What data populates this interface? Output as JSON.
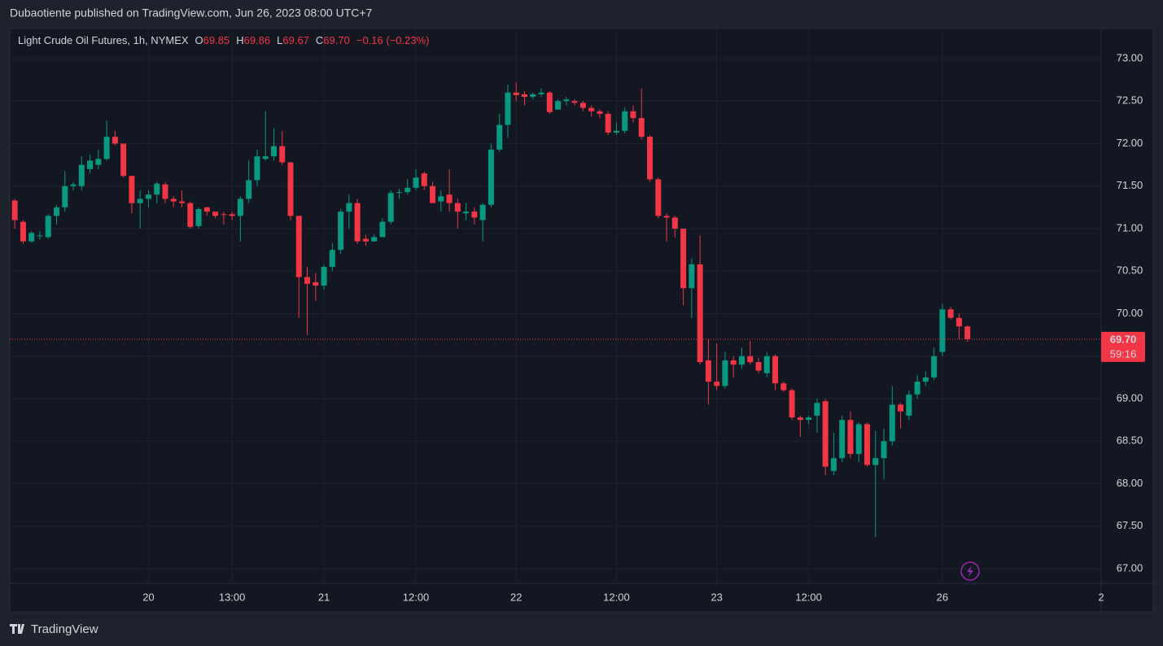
{
  "header": {
    "published": "Dubaotiente published on TradingView.com, Jun 26, 2023 08:00 UTC+7"
  },
  "footer": {
    "brand": "TradingView"
  },
  "chart_data": {
    "type": "candlestick",
    "title": "Light Crude Oil Futures, 1h, NYMEX",
    "ohlc_labels": [
      "O",
      "H",
      "L",
      "C"
    ],
    "ohlc_values": [
      "69.85",
      "69.86",
      "69.67",
      "69.70"
    ],
    "change": "−0.16 (−0.23%)",
    "up_color": "#089981",
    "down_color": "#f23645",
    "grid": true,
    "open": [
      71.33,
      71.08,
      70.85,
      70.92,
      70.9,
      71.15,
      71.25,
      71.5,
      71.5,
      71.7,
      71.75,
      71.82,
      72.08,
      72.0,
      71.62,
      71.3,
      71.35,
      71.4,
      71.52,
      71.35,
      71.32,
      71.3,
      71.03,
      71.25,
      71.2,
      71.17,
      71.17,
      71.15,
      71.35,
      71.57,
      71.82,
      71.85,
      71.97,
      71.78,
      71.15,
      70.43,
      70.37,
      70.33,
      70.55,
      70.75,
      71.2,
      71.3,
      70.88,
      70.85,
      70.9,
      71.08,
      71.42,
      71.43,
      71.48,
      71.65,
      71.5,
      71.32,
      71.4,
      71.3,
      71.18,
      71.2,
      71.1,
      71.28,
      71.93,
      72.22,
      72.6,
      72.58,
      72.55,
      72.58,
      72.6,
      72.4,
      72.5,
      72.5,
      72.48,
      72.42,
      72.38,
      72.35,
      72.13,
      72.15,
      72.38,
      72.3,
      72.08,
      71.58,
      71.15,
      71.13,
      71.0,
      70.3,
      70.58,
      69.45,
      69.2,
      69.15,
      69.45,
      69.4,
      69.5,
      69.43,
      69.3,
      69.5,
      69.18,
      69.1,
      68.78,
      68.75,
      68.8,
      68.97,
      68.15,
      68.3,
      68.75,
      68.35,
      68.7,
      68.22,
      68.3,
      68.5,
      68.93,
      68.8,
      69.05,
      69.2,
      69.25,
      69.55,
      70.05,
      69.95,
      69.85
    ],
    "high": [
      71.35,
      71.1,
      70.97,
      70.97,
      71.17,
      71.28,
      71.68,
      71.55,
      71.85,
      71.87,
      71.93,
      72.27,
      72.15,
      72.0,
      71.62,
      71.45,
      71.45,
      71.55,
      71.55,
      71.38,
      71.45,
      71.32,
      71.25,
      71.26,
      71.2,
      71.2,
      71.2,
      71.38,
      71.8,
      71.93,
      72.38,
      72.18,
      72.15,
      71.78,
      71.15,
      70.55,
      70.48,
      70.58,
      70.83,
      71.23,
      71.4,
      71.35,
      70.93,
      70.93,
      71.12,
      71.45,
      71.47,
      71.58,
      71.7,
      71.67,
      71.55,
      71.45,
      71.7,
      71.35,
      71.3,
      71.25,
      71.3,
      72.0,
      72.35,
      72.7,
      72.72,
      72.62,
      72.6,
      72.65,
      72.62,
      72.52,
      72.55,
      72.52,
      72.5,
      72.45,
      72.4,
      72.38,
      72.25,
      72.43,
      72.45,
      72.65,
      72.1,
      71.6,
      71.18,
      71.15,
      71.0,
      70.65,
      70.92,
      69.7,
      69.65,
      69.55,
      69.5,
      69.6,
      69.68,
      69.48,
      69.55,
      69.52,
      69.2,
      69.12,
      68.8,
      68.8,
      69.0,
      69.0,
      68.6,
      68.8,
      68.85,
      68.72,
      68.72,
      68.62,
      68.65,
      69.15,
      68.95,
      69.1,
      69.28,
      69.32,
      69.6,
      70.12,
      70.08,
      70.0,
      69.86
    ],
    "low": [
      71.0,
      70.82,
      70.83,
      70.87,
      70.88,
      71.05,
      71.2,
      71.45,
      71.45,
      71.65,
      71.7,
      71.8,
      71.98,
      71.6,
      71.18,
      71.0,
      71.25,
      71.3,
      71.3,
      71.25,
      71.25,
      71.0,
      71.0,
      71.15,
      71.12,
      71.05,
      71.1,
      70.85,
      71.3,
      71.5,
      71.8,
      71.8,
      71.75,
      71.1,
      69.95,
      69.75,
      70.15,
      70.28,
      70.5,
      70.7,
      71.0,
      70.82,
      70.8,
      70.85,
      70.9,
      71.05,
      71.35,
      71.4,
      71.45,
      71.45,
      71.3,
      71.2,
      71.2,
      71.0,
      71.1,
      71.05,
      70.85,
      71.25,
      71.9,
      72.07,
      72.5,
      72.45,
      72.52,
      72.55,
      72.35,
      72.4,
      72.45,
      72.45,
      72.38,
      72.32,
      72.3,
      72.1,
      72.1,
      72.12,
      72.25,
      72.05,
      71.55,
      71.12,
      70.85,
      70.9,
      70.1,
      69.95,
      69.4,
      68.93,
      69.1,
      69.12,
      69.25,
      69.35,
      69.4,
      69.3,
      69.25,
      69.1,
      69.08,
      68.75,
      68.55,
      68.7,
      68.6,
      68.1,
      68.1,
      68.25,
      68.3,
      68.25,
      68.2,
      67.37,
      68.05,
      68.45,
      68.65,
      68.75,
      69.0,
      69.15,
      69.22,
      69.5,
      69.93,
      69.7,
      69.67
    ],
    "close": [
      71.1,
      70.85,
      70.95,
      70.92,
      71.15,
      71.25,
      71.5,
      71.52,
      71.75,
      71.8,
      71.82,
      72.08,
      72.0,
      71.62,
      71.3,
      71.35,
      71.4,
      71.53,
      71.35,
      71.32,
      71.3,
      71.02,
      71.23,
      71.2,
      71.15,
      71.16,
      71.15,
      71.35,
      71.57,
      71.85,
      71.85,
      71.97,
      71.78,
      71.15,
      70.43,
      70.35,
      70.33,
      70.55,
      70.75,
      71.2,
      71.3,
      70.85,
      70.85,
      70.9,
      71.08,
      71.42,
      71.43,
      71.48,
      71.6,
      71.5,
      71.3,
      71.38,
      71.3,
      71.2,
      71.2,
      71.13,
      71.28,
      71.93,
      72.22,
      72.6,
      72.57,
      72.55,
      72.58,
      72.6,
      72.37,
      72.5,
      72.52,
      72.48,
      72.42,
      72.38,
      72.35,
      72.13,
      72.15,
      72.38,
      72.3,
      72.08,
      71.58,
      71.15,
      71.13,
      71.0,
      70.3,
      70.58,
      69.43,
      69.2,
      69.15,
      69.45,
      69.4,
      69.5,
      69.43,
      69.33,
      69.5,
      69.18,
      69.1,
      68.78,
      68.75,
      68.78,
      68.95,
      68.2,
      68.3,
      68.75,
      68.35,
      68.7,
      68.22,
      68.3,
      68.5,
      68.93,
      68.85,
      69.05,
      69.2,
      69.25,
      69.5,
      70.05,
      69.95,
      69.85,
      69.7
    ],
    "last_price_label": "69.70",
    "countdown": "59:16",
    "ylim": [
      66.828,
      73.354
    ],
    "yticks": [
      {
        "value": 67,
        "label": "67.00"
      },
      {
        "value": 67.5,
        "label": "67.50"
      },
      {
        "value": 68,
        "label": "68.00"
      },
      {
        "value": 68.5,
        "label": "68.50"
      },
      {
        "value": 69,
        "label": "69.00"
      },
      {
        "value": 69.5,
        "label": "69.50"
      },
      {
        "value": 70,
        "label": "70.00"
      },
      {
        "value": 70.5,
        "label": "70.50"
      },
      {
        "value": 71,
        "label": "71.00"
      },
      {
        "value": 71.5,
        "label": "71.50"
      },
      {
        "value": 72,
        "label": "72.00"
      },
      {
        "value": 72.5,
        "label": "72.50"
      },
      {
        "value": 73,
        "label": "73.00"
      }
    ],
    "xlim": [
      -0.6,
      130
    ],
    "xticks": [
      {
        "value": 16,
        "label": "20"
      },
      {
        "value": 26,
        "label": "13:00"
      },
      {
        "value": 37,
        "label": "21"
      },
      {
        "value": 48,
        "label": "12:00"
      },
      {
        "value": 60,
        "label": "22"
      },
      {
        "value": 72,
        "label": "12:00"
      },
      {
        "value": 84,
        "label": "23"
      },
      {
        "value": 95,
        "label": "12:00"
      },
      {
        "value": 111,
        "label": "26"
      },
      {
        "value": 130,
        "label": "2"
      }
    ]
  }
}
